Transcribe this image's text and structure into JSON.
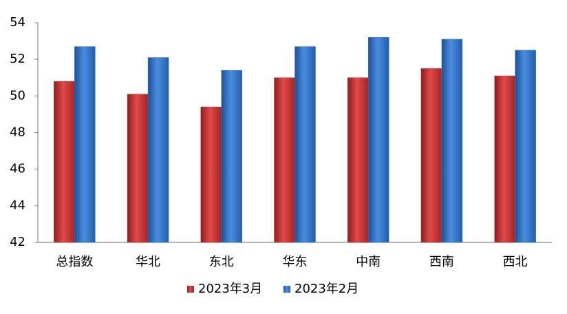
{
  "chart_data": {
    "type": "bar",
    "categories": [
      "总指数",
      "华北",
      "东北",
      "华东",
      "中南",
      "西南",
      "西北"
    ],
    "series": [
      {
        "name": "2023年3月",
        "color": "#d13b3b",
        "values": [
          50.8,
          50.1,
          49.4,
          51.0,
          51.0,
          51.5,
          51.1
        ]
      },
      {
        "name": "2023年2月",
        "color": "#3a7bd0",
        "values": [
          52.7,
          52.1,
          51.4,
          52.7,
          53.2,
          53.1,
          52.5
        ]
      }
    ],
    "ylim": [
      42,
      54
    ],
    "yticks": [
      42,
      44,
      46,
      48,
      50,
      52,
      54
    ],
    "grid": false,
    "legend": "bottom"
  }
}
